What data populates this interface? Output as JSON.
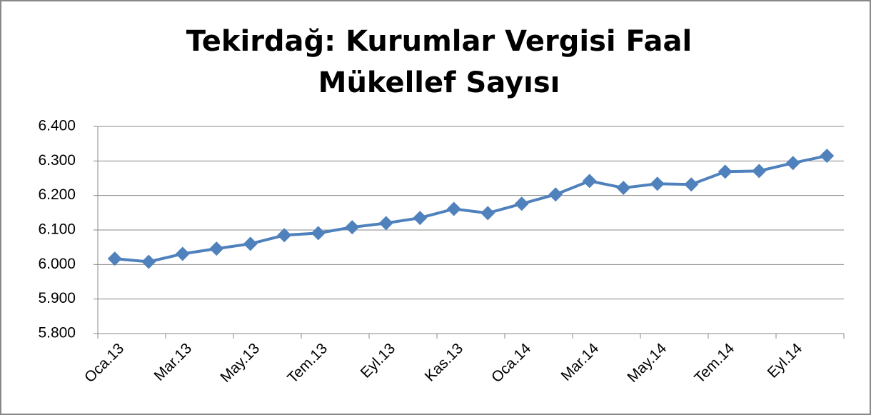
{
  "chart_data": {
    "type": "line",
    "title": [
      "Tekirdağ: Kurumlar Vergisi Faal",
      "Mükellef Sayısı"
    ],
    "categories": [
      "Oca.13",
      null,
      "Mar.13",
      null,
      "May.13",
      null,
      "Tem.13",
      null,
      "Eyl.13",
      null,
      "Kas.13",
      null,
      "Oca.14",
      null,
      "Mar.14",
      null,
      "May.14",
      null,
      "Tem.14",
      null,
      "Eyl.14",
      null
    ],
    "series": [
      {
        "color": "#4f81bd",
        "values": [
          6017,
          6008,
          6031,
          6046,
          6060,
          6085,
          6091,
          6108,
          6120,
          6135,
          6161,
          6149,
          6176,
          6203,
          6242,
          6222,
          6234,
          6232,
          6269,
          6271,
          6294,
          6315
        ]
      }
    ],
    "ylim": [
      5800,
      6400
    ],
    "yticks": [
      {
        "value": 5800,
        "label": "5.800"
      },
      {
        "value": 5900,
        "label": "5.900"
      },
      {
        "value": 6000,
        "label": "6.000"
      },
      {
        "value": 6100,
        "label": "6.100"
      },
      {
        "value": 6200,
        "label": "6.200"
      },
      {
        "value": 6300,
        "label": "6.300"
      },
      {
        "value": 6400,
        "label": "6.400"
      }
    ],
    "grid": true
  }
}
